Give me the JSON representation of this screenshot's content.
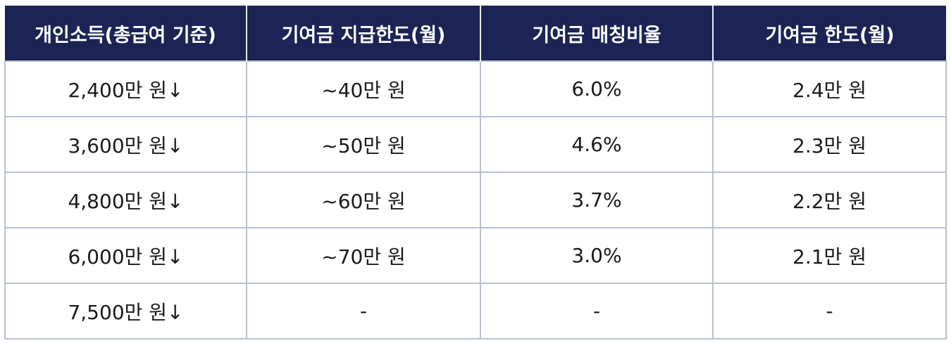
{
  "table": {
    "header": [
      "개인소득(총급여 기준)",
      "기여금 지급한도(월)",
      "기여금 매칭비율",
      "기여금 한도(월)"
    ],
    "rows": [
      [
        "2,400만 원↓",
        "~40만 원",
        "6.0%",
        "2.4만 원"
      ],
      [
        "3,600만 원↓",
        "~50만 원",
        "4.6%",
        "2.3만 원"
      ],
      [
        "4,800만 원↓",
        "~60만 원",
        "3.7%",
        "2.2만 원"
      ],
      [
        "6,000만 원↓",
        "~70만 원",
        "3.0%",
        "2.1만 원"
      ],
      [
        "7,500만 원↓",
        "-",
        "-",
        "-"
      ]
    ]
  }
}
